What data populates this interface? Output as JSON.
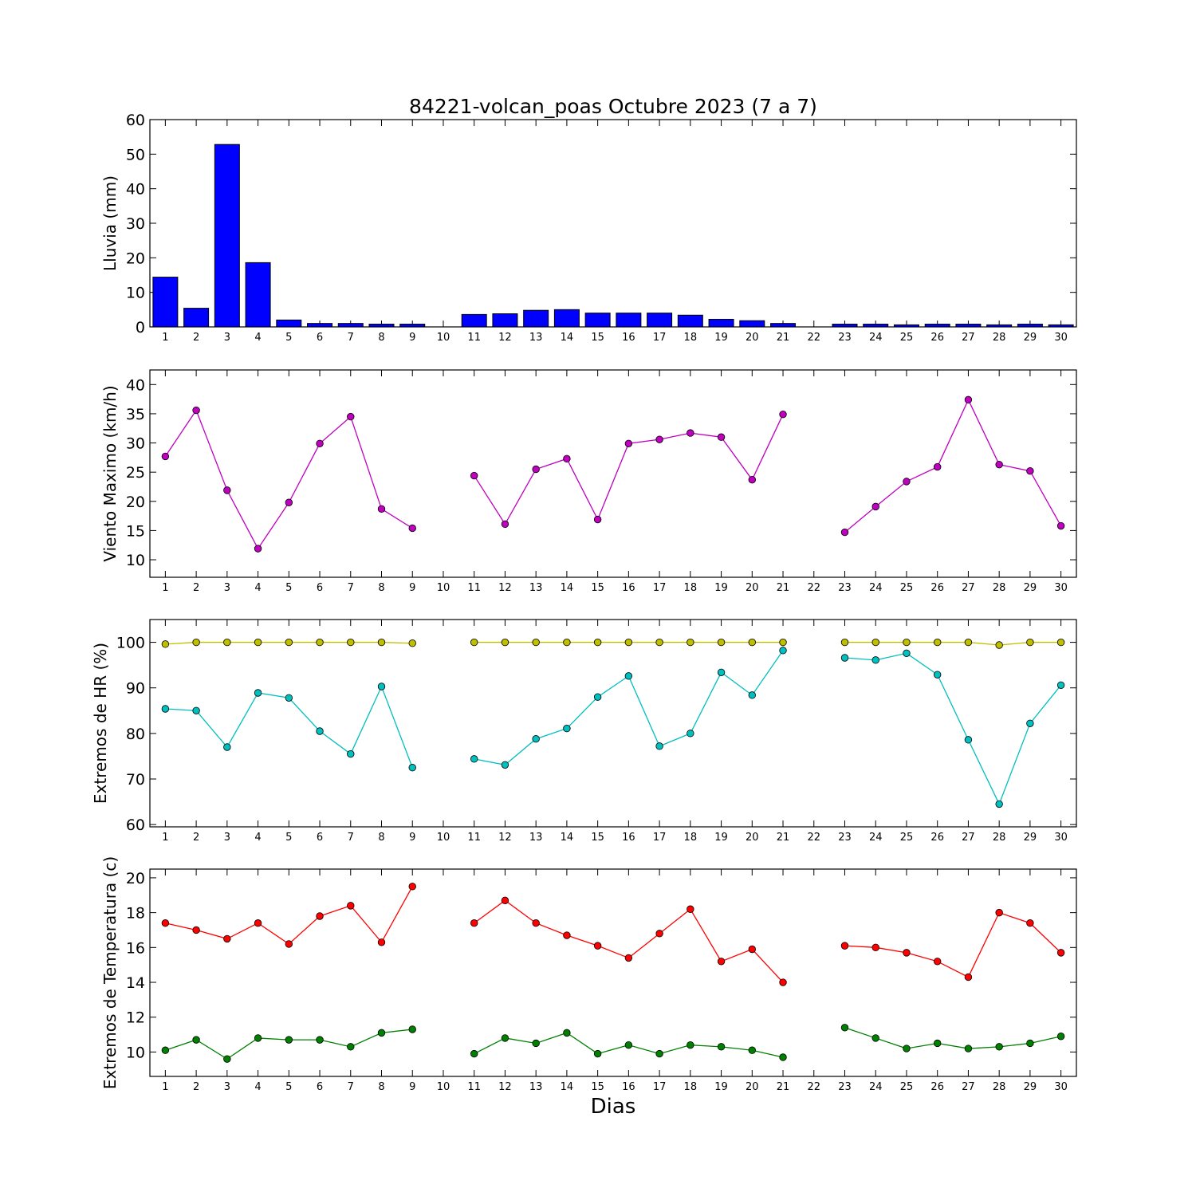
{
  "chart_data": {
    "title": "84221-volcan_poas Octubre 2023  (7 a 7)",
    "xlabel": "Dias",
    "days": [
      1,
      2,
      3,
      4,
      5,
      6,
      7,
      8,
      9,
      10,
      11,
      12,
      13,
      14,
      15,
      16,
      17,
      18,
      19,
      20,
      21,
      22,
      23,
      24,
      25,
      26,
      27,
      28,
      29,
      30
    ],
    "panels": [
      {
        "type": "bar",
        "ylabel": "Lluvia (mm)",
        "ylim": [
          0,
          60
        ],
        "yticks": [
          0,
          10,
          20,
          30,
          40,
          50,
          60
        ],
        "series": [
          {
            "color": "#0000ff",
            "values": [
              14.4,
              5.4,
              52.8,
              18.6,
              2.0,
              1.0,
              1.0,
              0.8,
              0.8,
              0.0,
              3.6,
              3.8,
              4.8,
              5.0,
              4.0,
              4.0,
              4.0,
              3.4,
              2.2,
              1.8,
              1.0,
              0.0,
              0.8,
              0.8,
              0.6,
              0.8,
              0.8,
              0.6,
              0.8,
              0.6
            ]
          }
        ]
      },
      {
        "type": "line",
        "ylabel": "Viento Maximo (km/h)",
        "ylim": [
          7,
          42.5
        ],
        "yticks": [
          10,
          15,
          20,
          25,
          30,
          35,
          40
        ],
        "series": [
          {
            "color": "#bf00bf",
            "values": [
              27.7,
              35.6,
              21.9,
              11.9,
              19.8,
              29.9,
              34.5,
              18.7,
              15.4,
              null,
              24.4,
              16.1,
              25.5,
              27.3,
              16.9,
              29.9,
              30.6,
              31.7,
              31.0,
              23.7,
              34.9,
              null,
              14.7,
              19.1,
              23.4,
              25.9,
              37.4,
              26.3,
              25.2,
              15.8
            ]
          }
        ]
      },
      {
        "type": "line",
        "ylabel": "Extremos de HR (%)",
        "ylim": [
          59.5,
          105
        ],
        "yticks": [
          60,
          70,
          80,
          90,
          100
        ],
        "series": [
          {
            "color": "#bfbf00",
            "values": [
              99.6,
              100,
              100,
              100,
              100,
              100,
              100,
              100,
              99.8,
              null,
              100,
              100,
              100,
              100,
              100,
              100,
              100,
              100,
              100,
              100,
              100,
              null,
              100,
              100,
              100,
              100,
              100,
              99.4,
              100,
              100
            ]
          },
          {
            "color": "#00bfbf",
            "values": [
              85.4,
              85.0,
              77.0,
              88.9,
              87.8,
              80.5,
              75.5,
              90.3,
              72.5,
              null,
              74.4,
              73.1,
              78.8,
              81.1,
              88.0,
              92.6,
              77.2,
              80.0,
              93.4,
              88.4,
              98.2,
              null,
              96.6,
              96.1,
              97.6,
              92.9,
              78.6,
              64.5,
              82.2,
              90.6
            ]
          }
        ]
      },
      {
        "type": "line",
        "ylabel": "Extremos de Temperatura (c)",
        "ylim": [
          8.6,
          20.5
        ],
        "yticks": [
          10,
          12,
          14,
          16,
          18,
          20
        ],
        "series": [
          {
            "color": "#ff0000",
            "values": [
              17.4,
              17.0,
              16.5,
              17.4,
              16.2,
              17.8,
              18.4,
              16.3,
              19.5,
              null,
              17.4,
              18.7,
              17.4,
              16.7,
              16.1,
              15.4,
              16.8,
              18.2,
              15.2,
              15.9,
              14.0,
              null,
              16.1,
              16.0,
              15.7,
              15.2,
              14.3,
              18.0,
              17.4,
              15.7
            ]
          },
          {
            "color": "#008000",
            "values": [
              10.1,
              10.7,
              9.6,
              10.8,
              10.7,
              10.7,
              10.3,
              11.1,
              11.3,
              null,
              9.9,
              10.8,
              10.5,
              11.1,
              9.9,
              10.4,
              9.9,
              10.4,
              10.3,
              10.1,
              9.7,
              null,
              11.4,
              10.8,
              10.2,
              10.5,
              10.2,
              10.3,
              10.5,
              10.9
            ]
          }
        ]
      }
    ]
  }
}
